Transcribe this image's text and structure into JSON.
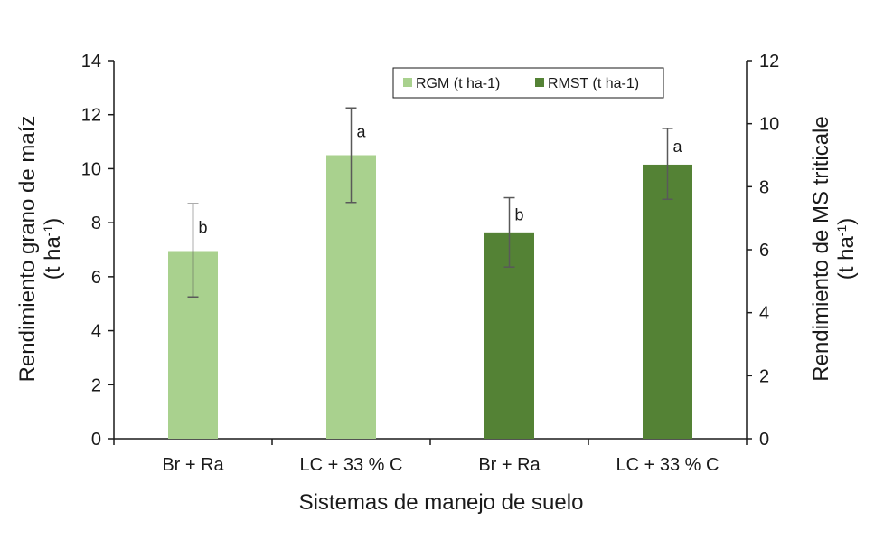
{
  "chart_data": {
    "type": "bar",
    "categories": [
      "Br + Ra",
      "LC + 33 % C",
      "Br + Ra",
      "LC + 33 % C"
    ],
    "xlabel": "Sistemas de manejo de suelo",
    "ylabel_left": {
      "main": "Rendimiento grano de maíz",
      "unit_base": "(t ha",
      "unit_sup": "-1",
      "unit_end": ")"
    },
    "ylabel_right": {
      "main": "Rendimiento de MS  triticale",
      "unit_base": "(t ha",
      "unit_sup": "-1",
      "unit_end": ")"
    },
    "ylim_left": [
      0,
      14
    ],
    "yticks_left": [
      "0",
      "2",
      "4",
      "6",
      "8",
      "10",
      "12",
      "14"
    ],
    "ylim_right": [
      0,
      12
    ],
    "yticks_right": [
      "0",
      "2",
      "4",
      "6",
      "8",
      "10",
      "12"
    ],
    "grid": false,
    "legend_position": "top-right",
    "series": [
      {
        "name": "RGM (t ha-1)",
        "color": "#a9d18e",
        "axis": "left",
        "values": [
          6.95,
          10.5,
          null,
          null
        ],
        "error_low": [
          5.25,
          8.75,
          null,
          null
        ],
        "error_high": [
          8.7,
          12.25,
          null,
          null
        ],
        "labels": [
          "b",
          "a",
          null,
          null
        ]
      },
      {
        "name": "RMST (t ha-1)",
        "color": "#548235",
        "axis": "right",
        "values": [
          null,
          null,
          6.55,
          8.7
        ],
        "error_low": [
          null,
          null,
          5.45,
          7.6
        ],
        "error_high": [
          null,
          null,
          7.65,
          9.85
        ],
        "labels": [
          null,
          null,
          "b",
          "a"
        ]
      }
    ]
  }
}
